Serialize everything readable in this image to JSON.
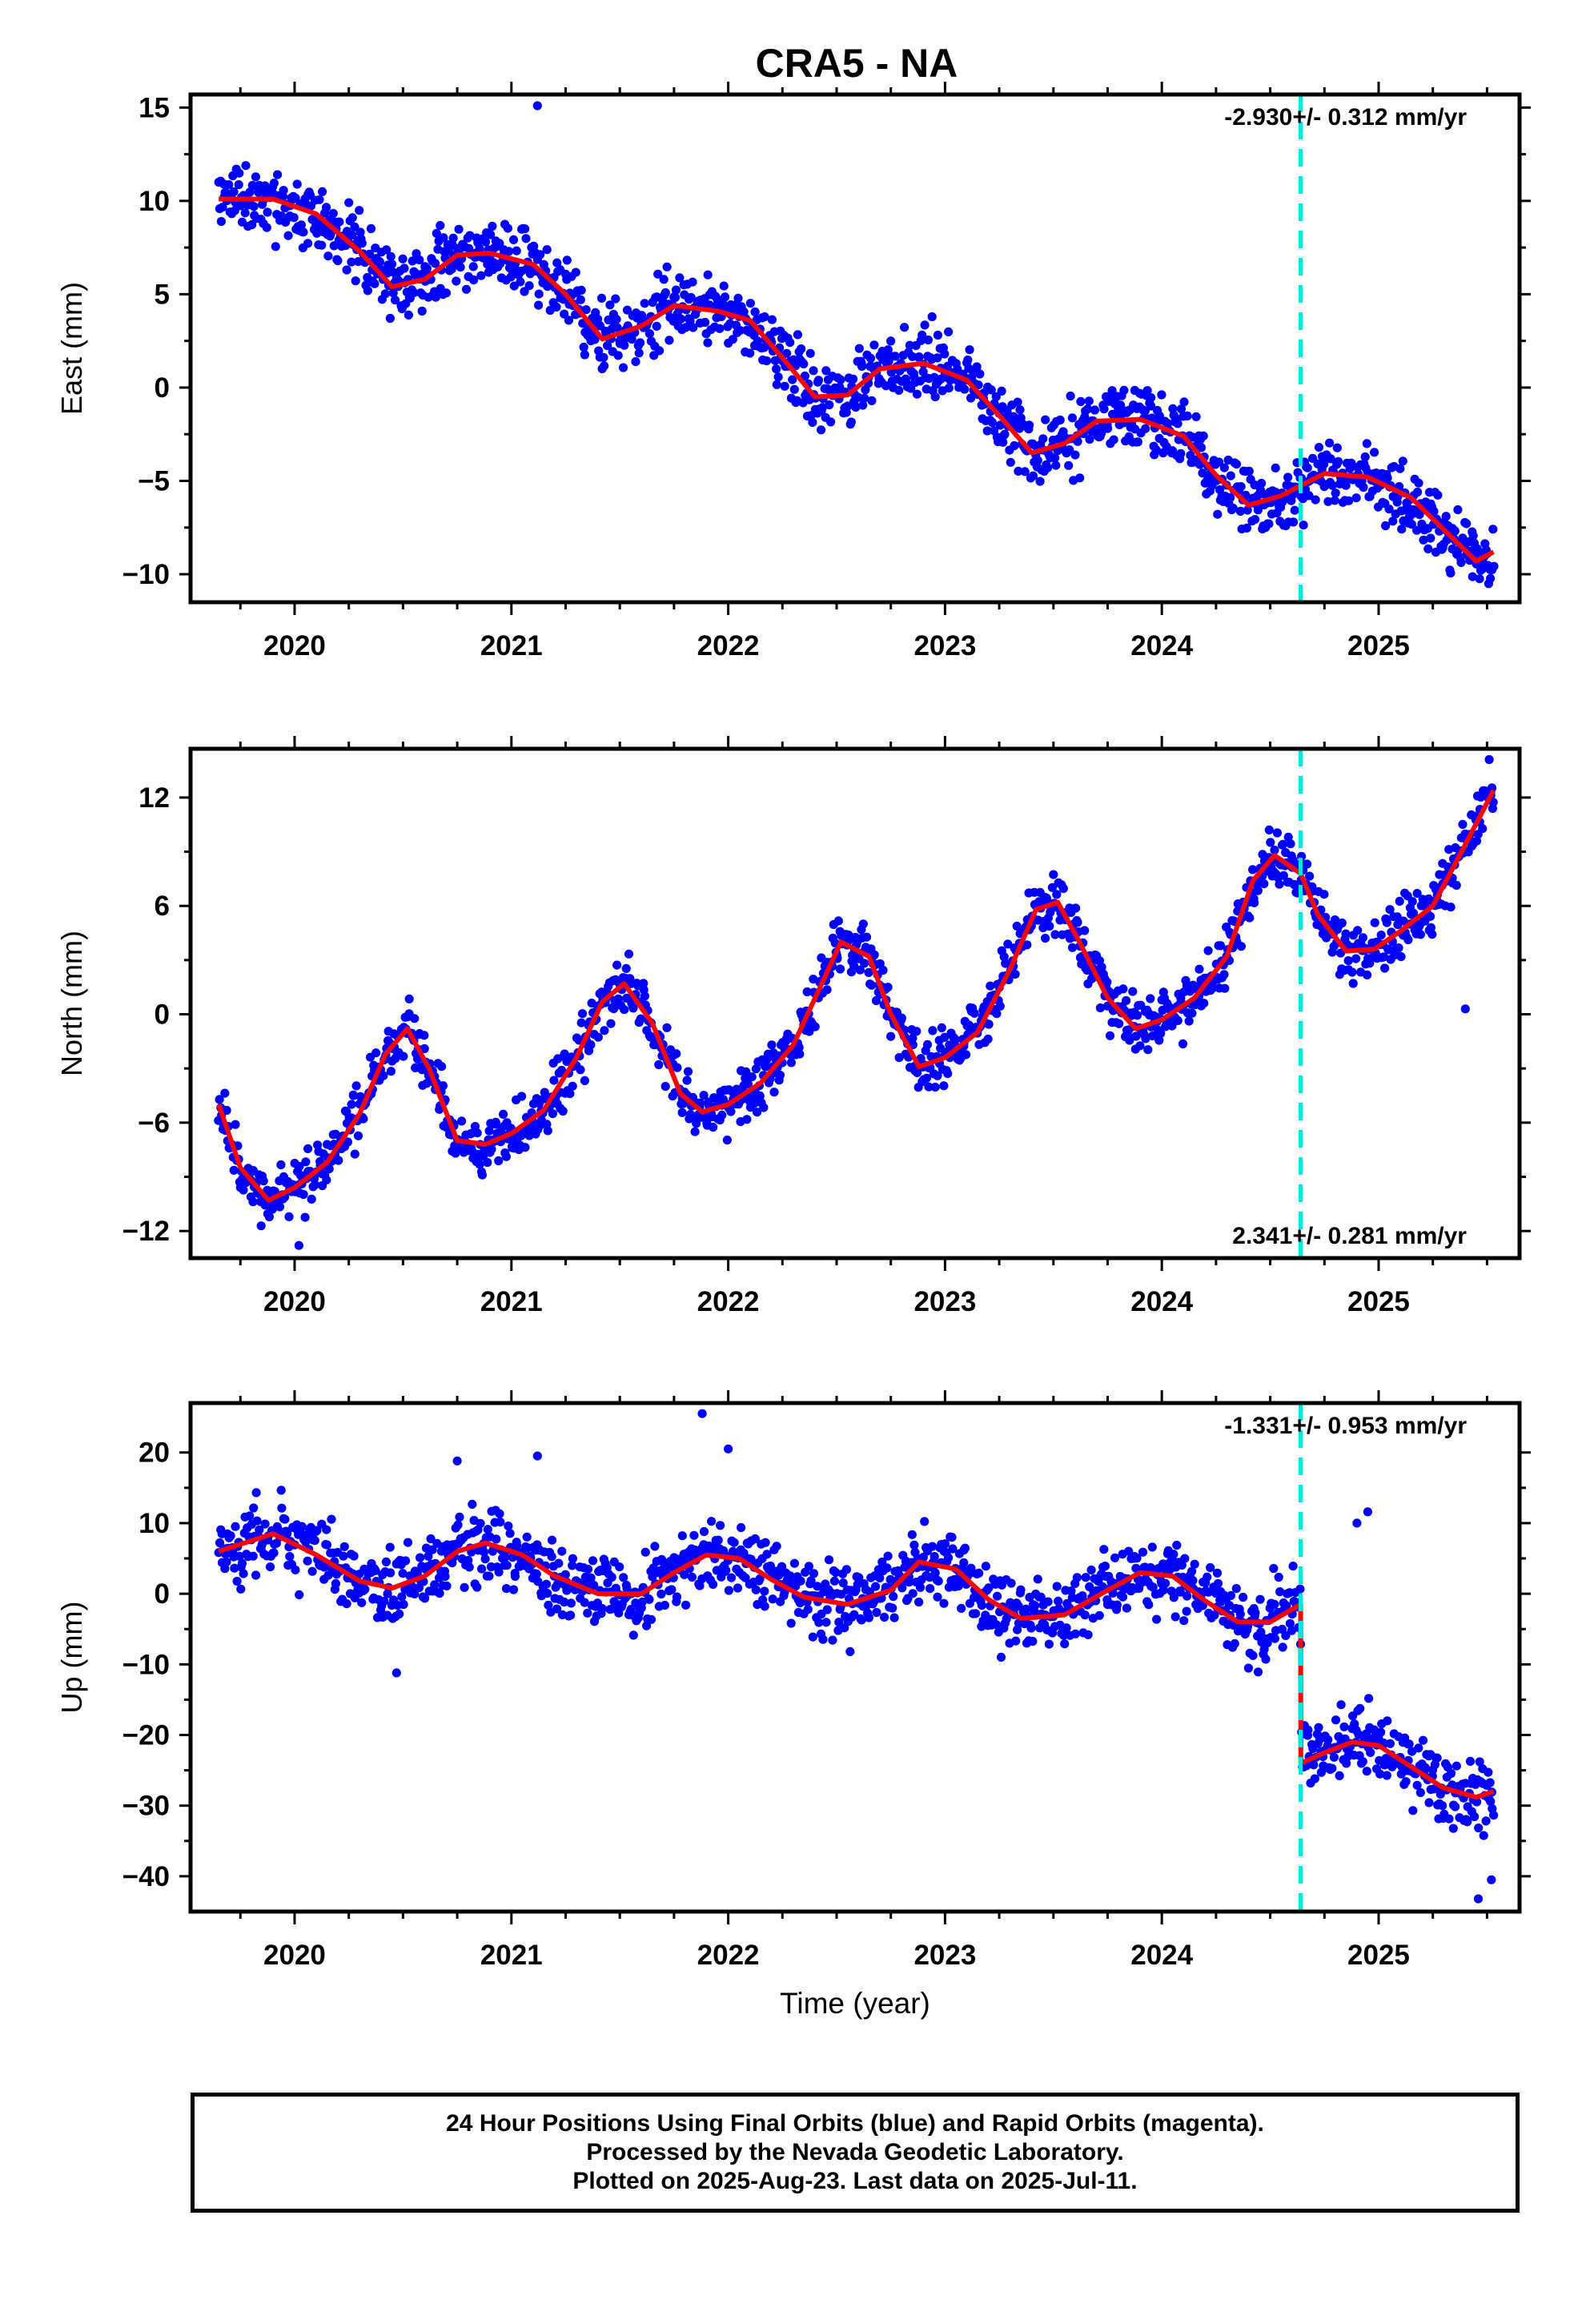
{
  "title": "CRA5 - NA",
  "chart_data": [
    {
      "type": "scatter",
      "panel": "east",
      "ylabel": "East (mm)",
      "xlabel": "",
      "xlim": [
        2019.52,
        2025.65
      ],
      "ylim": [
        -11.5,
        15.7
      ],
      "yticks": [
        -10,
        -5,
        0,
        5,
        10,
        15
      ],
      "yticklabels": [
        "−10",
        "−5",
        "0",
        "5",
        "10",
        "15"
      ],
      "xticks": [
        2020,
        2021,
        2022,
        2023,
        2024,
        2025
      ],
      "xticklabels": [
        "2020",
        "2021",
        "2022",
        "2023",
        "2024",
        "2025"
      ],
      "grid": false,
      "annotation": "-2.930+/- 0.312 mm/yr",
      "annotation_position": "top-right",
      "data_start": 2019.65,
      "data_end": 2025.53,
      "series": [
        {
          "role": "daily positions (final orbits)",
          "color": "#0000ff",
          "seed": 11,
          "scatter_sd": 1.3,
          "outliers": [
            [
              2021.12,
              15.1
            ]
          ]
        },
        {
          "role": "model fit",
          "color": "#ff0000",
          "x": [
            2019.65,
            2019.9,
            2020.1,
            2020.3,
            2020.45,
            2020.6,
            2020.75,
            2020.9,
            2021.1,
            2021.25,
            2021.42,
            2021.6,
            2021.75,
            2021.95,
            2022.1,
            2022.25,
            2022.4,
            2022.55,
            2022.7,
            2022.9,
            2023.1,
            2023.25,
            2023.4,
            2023.55,
            2023.7,
            2023.9,
            2024.1,
            2024.25,
            2024.4,
            2024.55,
            2024.75,
            2024.95,
            2025.15,
            2025.3,
            2025.45,
            2025.53
          ],
          "y": [
            10.1,
            10.1,
            9.3,
            7.3,
            5.4,
            5.8,
            7.1,
            7.2,
            6.6,
            5.0,
            2.6,
            3.3,
            4.4,
            4.1,
            3.6,
            1.6,
            -0.5,
            -0.4,
            1.0,
            1.3,
            0.4,
            -1.5,
            -3.5,
            -3.0,
            -1.8,
            -1.7,
            -2.6,
            -4.7,
            -6.3,
            -5.8,
            -4.6,
            -4.8,
            -5.9,
            -7.6,
            -9.3,
            -8.8
          ]
        }
      ]
    },
    {
      "type": "scatter",
      "panel": "north",
      "ylabel": "North (mm)",
      "xlabel": "",
      "xlim": [
        2019.52,
        2025.65
      ],
      "ylim": [
        -13.5,
        14.7
      ],
      "yticks": [
        -12,
        -6,
        0,
        6,
        12
      ],
      "yticklabels": [
        "−12",
        "−6",
        "0",
        "6",
        "12"
      ],
      "xticks": [
        2020,
        2021,
        2022,
        2023,
        2024,
        2025
      ],
      "xticklabels": [
        "2020",
        "2021",
        "2022",
        "2023",
        "2024",
        "2025"
      ],
      "grid": false,
      "annotation": "2.341+/- 0.281 mm/yr",
      "annotation_position": "bottom-right",
      "data_start": 2019.65,
      "data_end": 2025.53,
      "series": [
        {
          "role": "daily positions (final orbits)",
          "color": "#0000ff",
          "seed": 23,
          "scatter_sd": 1.1,
          "outliers": [
            [
              2025.4,
              0.3
            ],
            [
              2020.02,
              -12.8
            ],
            [
              2025.51,
              14.1
            ]
          ]
        },
        {
          "role": "model fit",
          "color": "#ff0000",
          "x": [
            2019.65,
            2019.75,
            2019.88,
            2020.0,
            2020.15,
            2020.3,
            2020.42,
            2020.52,
            2020.62,
            2020.75,
            2020.88,
            2021.0,
            2021.15,
            2021.3,
            2021.42,
            2021.52,
            2021.65,
            2021.78,
            2021.88,
            2022.0,
            2022.15,
            2022.3,
            2022.42,
            2022.52,
            2022.65,
            2022.75,
            2022.88,
            2023.0,
            2023.15,
            2023.3,
            2023.42,
            2023.52,
            2023.62,
            2023.75,
            2023.88,
            2024.0,
            2024.15,
            2024.3,
            2024.42,
            2024.52,
            2024.64,
            2024.72,
            2024.85,
            2024.98,
            2025.1,
            2025.25,
            2025.4,
            2025.53
          ],
          "y": [
            -5.0,
            -8.5,
            -10.3,
            -9.6,
            -8.2,
            -5.5,
            -2.2,
            -0.8,
            -3.0,
            -7.0,
            -7.2,
            -6.6,
            -5.3,
            -2.4,
            0.7,
            1.7,
            -0.5,
            -4.4,
            -5.4,
            -5.0,
            -3.8,
            -1.7,
            1.4,
            4.0,
            3.2,
            0.0,
            -2.9,
            -2.4,
            -1.0,
            2.5,
            5.8,
            6.2,
            4.0,
            0.9,
            -0.8,
            -0.3,
            0.9,
            3.2,
            7.4,
            8.8,
            7.8,
            5.5,
            3.5,
            3.6,
            4.6,
            6.0,
            9.4,
            12.4
          ]
        }
      ]
    },
    {
      "type": "scatter",
      "panel": "up",
      "ylabel": "Up (mm)",
      "xlabel": "Time (year)",
      "xlim": [
        2019.52,
        2025.65
      ],
      "ylim": [
        -45,
        27
      ],
      "yticks": [
        -40,
        -30,
        -20,
        -10,
        0,
        10,
        20
      ],
      "yticklabels": [
        "−40",
        "−30",
        "−20",
        "−10",
        "0",
        "10",
        "20"
      ],
      "xticks": [
        2020,
        2021,
        2022,
        2023,
        2024,
        2025
      ],
      "xticklabels": [
        "2020",
        "2021",
        "2022",
        "2023",
        "2024",
        "2025"
      ],
      "grid": false,
      "annotation": "-1.331+/- 0.953 mm/yr",
      "annotation_position": "top-right",
      "data_start": 2019.65,
      "data_end": 2025.53,
      "series": [
        {
          "role": "daily positions (final orbits)",
          "color": "#0000ff",
          "seed": 37,
          "scatter_sd": 3.6,
          "outliers": [
            [
              2021.88,
              25.5
            ],
            [
              2022.0,
              20.5
            ],
            [
              2020.47,
              -11.2
            ],
            [
              2024.95,
              11.6
            ],
            [
              2024.9,
              10.0
            ],
            [
              2025.46,
              -43.2
            ],
            [
              2025.52,
              -40.5
            ],
            [
              2021.12,
              19.5
            ],
            [
              2020.75,
              18.8
            ]
          ]
        },
        {
          "role": "model fit",
          "color": "#ff0000",
          "x": [
            2019.65,
            2019.9,
            2020.1,
            2020.3,
            2020.45,
            2020.6,
            2020.75,
            2020.88,
            2021.05,
            2021.2,
            2021.4,
            2021.6,
            2021.75,
            2021.9,
            2022.05,
            2022.2,
            2022.35,
            2022.55,
            2022.75,
            2022.88,
            2023.05,
            2023.2,
            2023.35,
            2023.55,
            2023.75,
            2023.9,
            2024.05,
            2024.2,
            2024.35,
            2024.5,
            2024.64,
            2024.641,
            2024.75,
            2024.88,
            2025.0,
            2025.15,
            2025.3,
            2025.45,
            2025.53
          ],
          "y": [
            6.0,
            8.5,
            5.5,
            1.8,
            0.8,
            2.5,
            6.0,
            7.2,
            5.5,
            2.5,
            0.0,
            0.0,
            3.0,
            5.5,
            5.0,
            2.0,
            -0.5,
            -1.5,
            0.5,
            4.5,
            3.5,
            -0.8,
            -3.5,
            -3.0,
            0.5,
            3.0,
            2.5,
            -1.0,
            -4.0,
            -4.0,
            -1.5,
            -24.0,
            -22.5,
            -21.0,
            -21.5,
            -24.5,
            -27.5,
            -28.8,
            -28.0
          ]
        }
      ]
    }
  ],
  "event_marker": {
    "x": 2024.64,
    "color": "#00e5e5",
    "style": "dashed"
  },
  "footer": {
    "line1": "24 Hour Positions Using Final Orbits (blue) and Rapid Orbits (magenta).",
    "line2": "Processed by the Nevada Geodetic Laboratory.",
    "line3": "Plotted on 2025-Aug-23. Last data on 2025-Jul-11."
  }
}
